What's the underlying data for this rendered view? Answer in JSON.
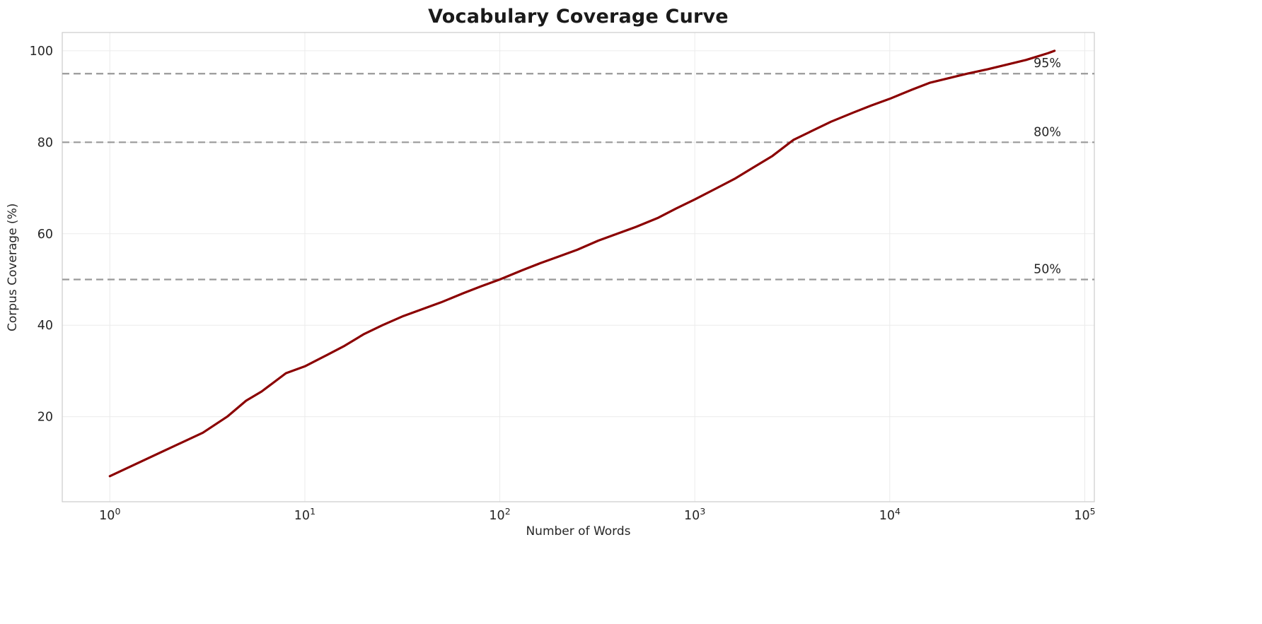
{
  "chart_data": {
    "type": "line",
    "title": "Vocabulary Coverage Curve",
    "xlabel": "Number of Words",
    "ylabel": "Corpus Coverage (%)",
    "x_scale": "log",
    "xlim": [
      0.57,
      112000
    ],
    "ylim": [
      1.4,
      104
    ],
    "x_tick_base": "10",
    "x_tick_exponents": [
      0,
      1,
      2,
      3,
      4,
      5
    ],
    "y_ticks": [
      20,
      40,
      60,
      80,
      100
    ],
    "grid": true,
    "grid_color": "#ebebeb",
    "spine_color": "#cccccc",
    "line_color": "#8b0000",
    "line_width": 3.2,
    "reference_line_color": "#999999",
    "reference_lines": [
      {
        "value": 50,
        "label": "50%"
      },
      {
        "value": 80,
        "label": "80%"
      },
      {
        "value": 95,
        "label": "95%"
      }
    ],
    "series": [
      {
        "name": "coverage",
        "x": [
          1,
          2,
          3,
          4,
          5,
          6,
          8,
          10,
          13,
          16,
          20,
          25,
          32,
          40,
          50,
          65,
          80,
          100,
          130,
          160,
          200,
          250,
          320,
          400,
          500,
          650,
          800,
          1000,
          1300,
          1600,
          2000,
          2500,
          3200,
          4000,
          5000,
          6500,
          8000,
          10000,
          13000,
          16000,
          20000,
          25000,
          32000,
          40000,
          50000,
          65000,
          70000
        ],
        "y": [
          7,
          13,
          16.5,
          20,
          23.5,
          25.5,
          29.5,
          31,
          33.5,
          35.5,
          38,
          40,
          42,
          43.5,
          45,
          47,
          48.5,
          50,
          52,
          53.5,
          55,
          56.5,
          58.5,
          60,
          61.5,
          63.5,
          65.5,
          67.5,
          70,
          72,
          74.5,
          77,
          80.5,
          82.5,
          84.5,
          86.5,
          88,
          89.5,
          91.5,
          93,
          94,
          95,
          96,
          97,
          98,
          99.5,
          100
        ]
      }
    ]
  }
}
